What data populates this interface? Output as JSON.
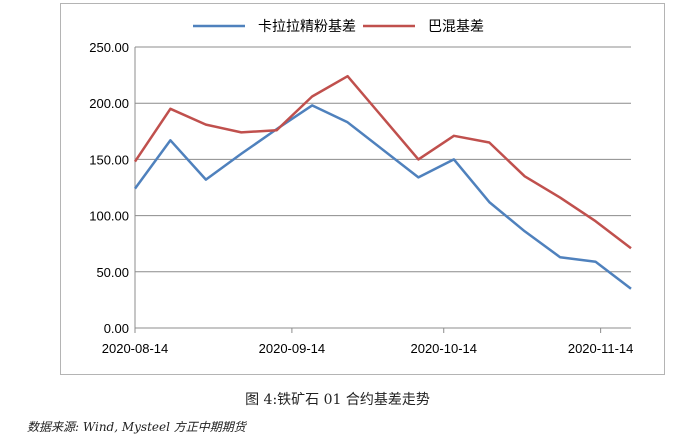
{
  "chart_data": {
    "type": "line",
    "title": "",
    "xlabel": "",
    "ylabel": "",
    "x": [
      "2020-08-14",
      "2020-08-21",
      "2020-08-28",
      "2020-09-04",
      "2020-09-11",
      "2020-09-18",
      "2020-09-25",
      "2020-10-02",
      "2020-10-09",
      "2020-10-16",
      "2020-10-23",
      "2020-10-30",
      "2020-11-06",
      "2020-11-13",
      "2020-11-20"
    ],
    "xticks": [
      "2020-08-14",
      "2020-09-14",
      "2020-10-14",
      "2020-11-14"
    ],
    "ylim": [
      0,
      250
    ],
    "yticks": [
      "0.00",
      "50.00",
      "100.00",
      "150.00",
      "200.00",
      "250.00"
    ],
    "legend_position": "top",
    "grid": true,
    "series": [
      {
        "name": "卡拉拉精粉基差",
        "color": "#4f81bd",
        "values": [
          124,
          167,
          132,
          155,
          177,
          198,
          183,
          null,
          134,
          150,
          112,
          86,
          63,
          59,
          35
        ]
      },
      {
        "name": "巴混基差",
        "color": "#c0504d",
        "values": [
          148,
          195,
          181,
          174,
          176,
          206,
          224,
          null,
          150,
          171,
          165,
          135,
          116,
          95,
          71
        ]
      }
    ]
  },
  "caption": "图 4:铁矿石 01 合约基差走势",
  "source": "数据来源: Wind, Mysteel 方正中期期货"
}
